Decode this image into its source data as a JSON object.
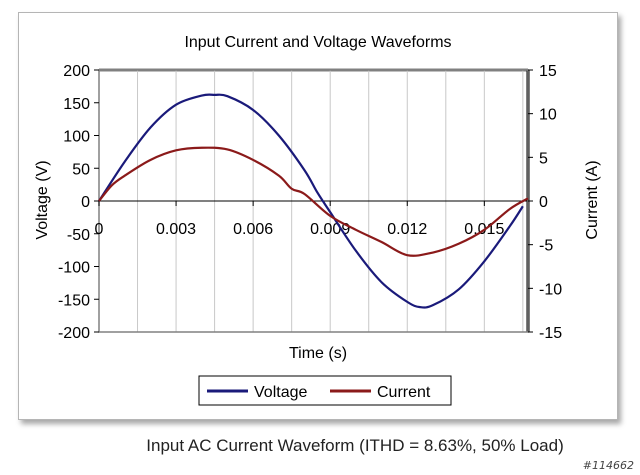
{
  "caption": "Input AC Current Waveform (ITHD = 8.63%, 50% Load)",
  "watermark": "#114662",
  "chart_data": {
    "type": "line",
    "title": "Input Current and Voltage Waveforms",
    "xlabel": "Time (s)",
    "ylabel": "Voltage (V)",
    "y2label": "Current (A)",
    "xlim": [
      0,
      0.0167
    ],
    "ylim": [
      -200,
      200
    ],
    "y2lim": [
      -15,
      15
    ],
    "x_ticks": [
      0,
      0.003,
      0.006,
      0.009,
      0.012,
      0.015
    ],
    "x_tick_labels": [
      "0",
      "0.003",
      "0.006",
      "0.009",
      "0.012",
      "0.015"
    ],
    "y_ticks": [
      200,
      150,
      100,
      50,
      0,
      -50,
      -100,
      -150,
      -200
    ],
    "y2_ticks": [
      15,
      10,
      5,
      0,
      -5,
      -10,
      -15
    ],
    "grid": "vertical",
    "legend_position": "bottom",
    "colors": {
      "voltage": "#1a1a7a",
      "current": "#8b1a1a",
      "plot_border": "#808080",
      "grid": "#c8c8c8"
    },
    "series": [
      {
        "name": "Voltage",
        "axis": "left",
        "x": [
          0,
          0.001,
          0.002,
          0.003,
          0.004,
          0.0045,
          0.005,
          0.006,
          0.007,
          0.008,
          0.0085,
          0.009,
          0.01,
          0.011,
          0.012,
          0.0125,
          0.013,
          0.014,
          0.015,
          0.016,
          0.0165
        ],
        "values": [
          0,
          60,
          112,
          147,
          161,
          162,
          160,
          139,
          100,
          47,
          13,
          -17,
          -76,
          -124,
          -154,
          -162,
          -159,
          -135,
          -92,
          -38,
          -8
        ]
      },
      {
        "name": "Current",
        "axis": "right",
        "x": [
          0,
          0.0005,
          0.001,
          0.002,
          0.003,
          0.004,
          0.005,
          0.006,
          0.007,
          0.0075,
          0.008,
          0.009,
          0.01,
          0.011,
          0.012,
          0.013,
          0.014,
          0.015,
          0.016,
          0.0167
        ],
        "values": [
          0,
          1.8,
          2.9,
          4.7,
          5.8,
          6.1,
          5.9,
          4.7,
          2.9,
          1.4,
          0.8,
          -1.7,
          -3.3,
          -4.7,
          -6.2,
          -5.9,
          -4.9,
          -3.3,
          -0.9,
          0.3
        ]
      }
    ]
  }
}
